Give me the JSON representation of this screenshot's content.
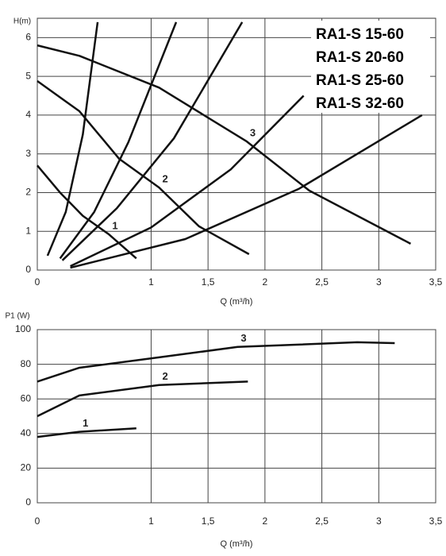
{
  "chart_data": [
    {
      "type": "line",
      "annotations": [
        "RA1-S 15-60",
        "RA1-S 20-60",
        "RA1-S 25-60",
        "RA1-S 32-60"
      ],
      "y_label": "H(m)",
      "x_label": "Q (m³/h)",
      "xlim": [
        0,
        3.5
      ],
      "ylim": [
        0,
        6.5
      ],
      "xticks": [
        0,
        1,
        {
          "value": 1.5,
          "label": "1,5"
        },
        2,
        {
          "value": 2.5,
          "label": "2,5"
        },
        3,
        {
          "value": 3.5,
          "label": "3,5"
        }
      ],
      "yticks": [
        0,
        1,
        2,
        3,
        4,
        5,
        6
      ],
      "grid": true,
      "series": [
        {
          "name": "1",
          "color": "#111111",
          "x": [
            0,
            0.2,
            0.4,
            0.63,
            0.87
          ],
          "values": [
            2.7,
            2.0,
            1.4,
            0.92,
            0.3
          ]
        },
        {
          "name": "2",
          "color": "#111111",
          "x": [
            0,
            0.37,
            0.72,
            1.07,
            1.42,
            1.86
          ],
          "values": [
            4.88,
            4.1,
            2.87,
            2.13,
            1.13,
            0.41
          ]
        },
        {
          "name": "3",
          "color": "#111111",
          "x": [
            0,
            0.37,
            1.07,
            1.84,
            2.39,
            3.28
          ],
          "values": [
            5.8,
            5.53,
            4.71,
            3.32,
            2.05,
            0.68
          ]
        },
        {
          "color": "#111111",
          "x": [
            0.09,
            0.25,
            0.4,
            0.53
          ],
          "values": [
            0.37,
            1.5,
            3.5,
            6.4
          ]
        },
        {
          "color": "#111111",
          "x": [
            0.2,
            0.5,
            0.8,
            1.22
          ],
          "values": [
            0.3,
            1.5,
            3.3,
            6.4
          ]
        },
        {
          "color": "#111111",
          "x": [
            0.22,
            0.7,
            1.2,
            1.8
          ],
          "values": [
            0.25,
            1.6,
            3.4,
            6.4
          ]
        },
        {
          "color": "#111111",
          "x": [
            0.29,
            1.0,
            1.7,
            2.34
          ],
          "values": [
            0.1,
            1.1,
            2.6,
            4.5
          ]
        },
        {
          "color": "#111111",
          "x": [
            0.29,
            1.3,
            2.3,
            3.38
          ],
          "values": [
            0.06,
            0.8,
            2.1,
            4.0
          ]
        }
      ]
    },
    {
      "type": "line",
      "y_label": "P1 (W)",
      "x_label": "Q (m³/h)",
      "xlim": [
        0,
        3.5
      ],
      "ylim": [
        0,
        100
      ],
      "xticks": [
        0,
        1,
        {
          "value": 1.5,
          "label": "1,5"
        },
        2,
        {
          "value": 2.5,
          "label": "2,5"
        },
        3,
        {
          "value": 3.5,
          "label": "3,5"
        }
      ],
      "yticks": [
        0,
        20,
        40,
        60,
        80,
        100
      ],
      "grid": true,
      "series": [
        {
          "name": "1",
          "color": "#111111",
          "x": [
            0,
            0.37,
            0.87
          ],
          "values": [
            38,
            41,
            43
          ]
        },
        {
          "name": "2",
          "color": "#111111",
          "x": [
            0,
            0.37,
            1.07,
            1.85
          ],
          "values": [
            50,
            62,
            68,
            70
          ]
        },
        {
          "name": "3",
          "color": "#111111",
          "x": [
            0,
            0.37,
            1.07,
            1.76,
            2.81,
            3.14
          ],
          "values": [
            70,
            78,
            84,
            90,
            92.7,
            92.2
          ]
        }
      ]
    }
  ]
}
